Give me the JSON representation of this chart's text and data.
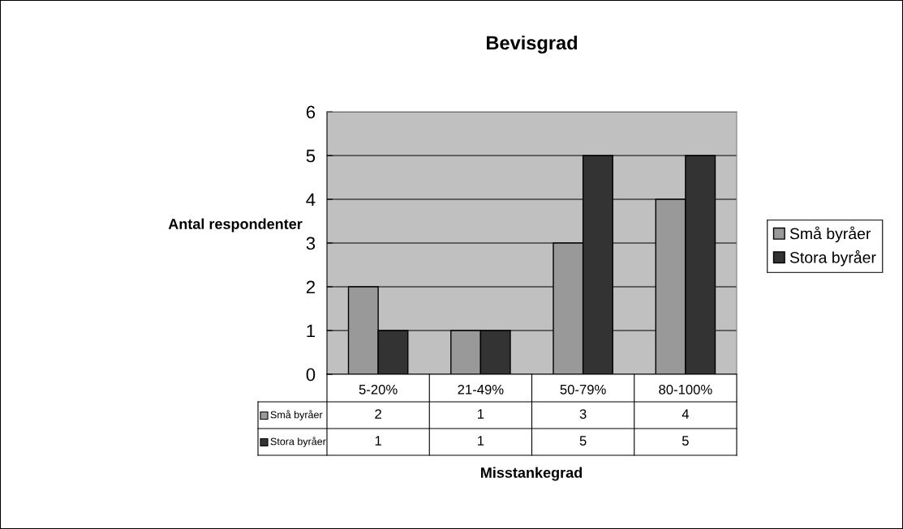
{
  "chart_data": {
    "type": "bar",
    "title": "Bevisgrad",
    "xlabel": "Misstankegrad",
    "ylabel": "Antal respondenter",
    "categories": [
      "5-20%",
      "21-49%",
      "50-79%",
      "80-100%"
    ],
    "series": [
      {
        "name": "Små byråer",
        "color": "#999999",
        "values": [
          2,
          1,
          3,
          4
        ]
      },
      {
        "name": "Stora byråer",
        "color": "#333333",
        "values": [
          1,
          1,
          5,
          5
        ]
      }
    ],
    "ylim": [
      0,
      6
    ],
    "yticks": [
      0,
      1,
      2,
      3,
      4,
      5,
      6
    ],
    "grid": "y",
    "legend": "right",
    "data_labels": true
  }
}
